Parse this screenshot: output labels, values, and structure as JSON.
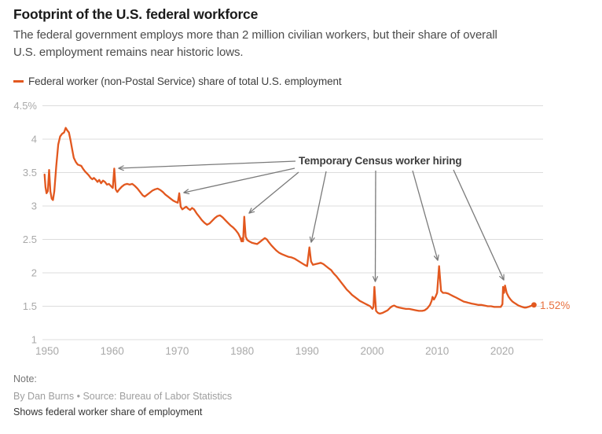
{
  "header": {
    "title": "Footprint of the U.S. federal workforce",
    "subtitle_lines": [
      "The federal government employs more than 2 million civilian workers, but their share of overall",
      "U.S. employment remains near historic lows."
    ]
  },
  "legend": {
    "label": "Federal worker (non-Postal Service) share of total U.S. employment",
    "swatch_color": "#E2581F"
  },
  "footer": {
    "note_label": "Note:",
    "byline": "By Dan Burns • Source: Bureau of Labor Statistics",
    "caption": "Shows federal worker share of employment"
  },
  "chart_data": {
    "type": "line",
    "title": "Federal worker (non-Postal Service) share of total U.S. employment",
    "unit": "percent of total U.S. employment",
    "grid": true,
    "legend_position": "top-left",
    "colors": {
      "line": "#E2581F",
      "grid": "#DCDCDC",
      "axis_label": "#A9A9A9",
      "arrow": "#7A7A7A",
      "end_label": "#E8703E",
      "annotation_text": "#3C3C3C"
    },
    "x_axis": {
      "range": [
        1949.1,
        2026.3
      ],
      "ticks": [
        {
          "v": 1950,
          "label": "1950"
        },
        {
          "v": 1960,
          "label": "1960"
        },
        {
          "v": 1970,
          "label": "1970"
        },
        {
          "v": 1980,
          "label": "1980"
        },
        {
          "v": 1990,
          "label": "1990"
        },
        {
          "v": 2000,
          "label": "2000"
        },
        {
          "v": 2010,
          "label": "2010"
        },
        {
          "v": 2020,
          "label": "2020"
        }
      ]
    },
    "y_axis": {
      "range": [
        1,
        4.5
      ],
      "ticks": [
        {
          "v": 4.5,
          "label": "4.5%"
        },
        {
          "v": 4.0,
          "label": "4"
        },
        {
          "v": 3.5,
          "label": "3.5"
        },
        {
          "v": 3.0,
          "label": "3"
        },
        {
          "v": 2.5,
          "label": "2.5"
        },
        {
          "v": 2.0,
          "label": "2"
        },
        {
          "v": 1.5,
          "label": "1.5"
        },
        {
          "v": 1.0,
          "label": "1"
        }
      ]
    },
    "annotation": {
      "text": "Temporary Census worker hiring",
      "census_years": [
        1950,
        1960,
        1970,
        1980,
        1990,
        2000,
        2010,
        2020
      ],
      "census_spike_values": [
        3.54,
        3.56,
        3.19,
        2.84,
        2.38,
        1.79,
        2.1,
        1.81
      ],
      "arrows": [
        {
          "from": [
            376,
            205
          ],
          "to": [
            151,
            214
          ]
        },
        {
          "from": [
            375,
            214
          ],
          "to": [
            234,
            245
          ]
        },
        {
          "from": [
            380,
            219
          ],
          "to": [
            317,
            271
          ]
        },
        {
          "from": [
            415,
            218
          ],
          "to": [
            396,
            308
          ]
        },
        {
          "from": [
            478,
            217
          ],
          "to": [
            477.5,
            358
          ]
        },
        {
          "from": [
            525,
            217
          ],
          "to": [
            557,
            331
          ]
        },
        {
          "from": [
            577,
            216
          ],
          "to": [
            641,
            356
          ]
        }
      ]
    },
    "end_label": "1.52%",
    "end_point": [
      2024.9,
      1.52
    ],
    "series": [
      {
        "name": "Federal worker (non-Postal Service) share of total U.S. employment",
        "color": "#E2581F",
        "points": [
          [
            1949.6,
            3.47
          ],
          [
            1949.75,
            3.28
          ],
          [
            1949.9,
            3.19
          ],
          [
            1950.1,
            3.22
          ],
          [
            1950.3,
            3.54
          ],
          [
            1950.5,
            3.22
          ],
          [
            1950.7,
            3.11
          ],
          [
            1950.9,
            3.09
          ],
          [
            1951.1,
            3.22
          ],
          [
            1951.4,
            3.6
          ],
          [
            1951.7,
            3.92
          ],
          [
            1952.0,
            4.04
          ],
          [
            1952.3,
            4.08
          ],
          [
            1952.6,
            4.1
          ],
          [
            1952.85,
            4.17
          ],
          [
            1953.1,
            4.13
          ],
          [
            1953.35,
            4.1
          ],
          [
            1953.6,
            3.98
          ],
          [
            1953.85,
            3.85
          ],
          [
            1954.1,
            3.72
          ],
          [
            1954.4,
            3.66
          ],
          [
            1954.7,
            3.62
          ],
          [
            1955.0,
            3.61
          ],
          [
            1955.25,
            3.6
          ],
          [
            1955.5,
            3.56
          ],
          [
            1955.8,
            3.52
          ],
          [
            1956.1,
            3.49
          ],
          [
            1956.4,
            3.46
          ],
          [
            1956.7,
            3.42
          ],
          [
            1956.95,
            3.4
          ],
          [
            1957.2,
            3.42
          ],
          [
            1957.5,
            3.39
          ],
          [
            1957.75,
            3.36
          ],
          [
            1958.0,
            3.39
          ],
          [
            1958.3,
            3.34
          ],
          [
            1958.6,
            3.38
          ],
          [
            1958.9,
            3.36
          ],
          [
            1959.2,
            3.32
          ],
          [
            1959.5,
            3.33
          ],
          [
            1959.8,
            3.3
          ],
          [
            1960.1,
            3.27
          ],
          [
            1960.33,
            3.56
          ],
          [
            1960.55,
            3.25
          ],
          [
            1960.8,
            3.21
          ],
          [
            1961.1,
            3.25
          ],
          [
            1961.5,
            3.29
          ],
          [
            1961.9,
            3.32
          ],
          [
            1962.3,
            3.33
          ],
          [
            1962.7,
            3.32
          ],
          [
            1963.1,
            3.33
          ],
          [
            1963.5,
            3.3
          ],
          [
            1963.9,
            3.26
          ],
          [
            1964.3,
            3.21
          ],
          [
            1964.7,
            3.16
          ],
          [
            1965.0,
            3.14
          ],
          [
            1965.4,
            3.17
          ],
          [
            1965.8,
            3.2
          ],
          [
            1966.2,
            3.23
          ],
          [
            1966.6,
            3.25
          ],
          [
            1967.0,
            3.26
          ],
          [
            1967.4,
            3.24
          ],
          [
            1967.8,
            3.21
          ],
          [
            1968.2,
            3.17
          ],
          [
            1968.6,
            3.14
          ],
          [
            1969.0,
            3.11
          ],
          [
            1969.4,
            3.08
          ],
          [
            1969.8,
            3.06
          ],
          [
            1970.1,
            3.05
          ],
          [
            1970.33,
            3.19
          ],
          [
            1970.55,
            2.99
          ],
          [
            1970.8,
            2.95
          ],
          [
            1971.1,
            2.97
          ],
          [
            1971.4,
            2.99
          ],
          [
            1971.7,
            2.96
          ],
          [
            1972.0,
            2.94
          ],
          [
            1972.3,
            2.97
          ],
          [
            1972.6,
            2.95
          ],
          [
            1973.0,
            2.89
          ],
          [
            1973.4,
            2.84
          ],
          [
            1973.8,
            2.79
          ],
          [
            1974.2,
            2.75
          ],
          [
            1974.6,
            2.72
          ],
          [
            1975.0,
            2.74
          ],
          [
            1975.4,
            2.78
          ],
          [
            1975.8,
            2.82
          ],
          [
            1976.2,
            2.85
          ],
          [
            1976.6,
            2.86
          ],
          [
            1977.0,
            2.83
          ],
          [
            1977.4,
            2.79
          ],
          [
            1977.8,
            2.75
          ],
          [
            1978.2,
            2.71
          ],
          [
            1978.6,
            2.68
          ],
          [
            1979.0,
            2.64
          ],
          [
            1979.4,
            2.59
          ],
          [
            1979.7,
            2.53
          ],
          [
            1979.9,
            2.47
          ],
          [
            1980.05,
            2.52
          ],
          [
            1980.15,
            2.47
          ],
          [
            1980.33,
            2.84
          ],
          [
            1980.55,
            2.54
          ],
          [
            1980.8,
            2.49
          ],
          [
            1981.1,
            2.47
          ],
          [
            1981.5,
            2.45
          ],
          [
            1981.9,
            2.44
          ],
          [
            1982.3,
            2.43
          ],
          [
            1982.7,
            2.46
          ],
          [
            1983.1,
            2.49
          ],
          [
            1983.5,
            2.52
          ],
          [
            1983.8,
            2.5
          ],
          [
            1984.1,
            2.46
          ],
          [
            1984.5,
            2.41
          ],
          [
            1984.9,
            2.37
          ],
          [
            1985.3,
            2.33
          ],
          [
            1985.7,
            2.3
          ],
          [
            1986.1,
            2.28
          ],
          [
            1986.6,
            2.26
          ],
          [
            1987.1,
            2.24
          ],
          [
            1987.6,
            2.23
          ],
          [
            1988.1,
            2.21
          ],
          [
            1988.6,
            2.18
          ],
          [
            1989.1,
            2.15
          ],
          [
            1989.6,
            2.12
          ],
          [
            1990.0,
            2.1
          ],
          [
            1990.35,
            2.38
          ],
          [
            1990.6,
            2.17
          ],
          [
            1990.9,
            2.12
          ],
          [
            1991.3,
            2.13
          ],
          [
            1991.7,
            2.14
          ],
          [
            1992.1,
            2.15
          ],
          [
            1992.5,
            2.13
          ],
          [
            1992.9,
            2.1
          ],
          [
            1993.3,
            2.07
          ],
          [
            1993.7,
            2.04
          ],
          [
            1994.1,
            1.99
          ],
          [
            1994.5,
            1.95
          ],
          [
            1994.9,
            1.9
          ],
          [
            1995.3,
            1.85
          ],
          [
            1995.7,
            1.8
          ],
          [
            1996.1,
            1.75
          ],
          [
            1996.5,
            1.71
          ],
          [
            1996.9,
            1.67
          ],
          [
            1997.3,
            1.64
          ],
          [
            1997.7,
            1.61
          ],
          [
            1998.1,
            1.58
          ],
          [
            1998.5,
            1.56
          ],
          [
            1998.9,
            1.54
          ],
          [
            1999.3,
            1.52
          ],
          [
            1999.7,
            1.5
          ],
          [
            2000.05,
            1.46
          ],
          [
            2000.2,
            1.49
          ],
          [
            2000.35,
            1.79
          ],
          [
            2000.6,
            1.43
          ],
          [
            2000.9,
            1.4
          ],
          [
            2001.2,
            1.39
          ],
          [
            2001.6,
            1.4
          ],
          [
            2002.0,
            1.42
          ],
          [
            2002.4,
            1.44
          ],
          [
            2002.8,
            1.48
          ],
          [
            2003.1,
            1.5
          ],
          [
            2003.4,
            1.51
          ],
          [
            2003.8,
            1.49
          ],
          [
            2004.2,
            1.48
          ],
          [
            2004.7,
            1.47
          ],
          [
            2005.2,
            1.46
          ],
          [
            2005.7,
            1.46
          ],
          [
            2006.2,
            1.45
          ],
          [
            2006.7,
            1.44
          ],
          [
            2007.2,
            1.43
          ],
          [
            2007.7,
            1.43
          ],
          [
            2008.1,
            1.44
          ],
          [
            2008.5,
            1.47
          ],
          [
            2008.9,
            1.52
          ],
          [
            2009.15,
            1.58
          ],
          [
            2009.3,
            1.64
          ],
          [
            2009.5,
            1.6
          ],
          [
            2009.75,
            1.64
          ],
          [
            2010.0,
            1.7
          ],
          [
            2010.3,
            2.1
          ],
          [
            2010.6,
            1.73
          ],
          [
            2010.9,
            1.7
          ],
          [
            2011.3,
            1.7
          ],
          [
            2011.7,
            1.69
          ],
          [
            2012.1,
            1.67
          ],
          [
            2012.5,
            1.65
          ],
          [
            2012.9,
            1.63
          ],
          [
            2013.3,
            1.61
          ],
          [
            2013.7,
            1.59
          ],
          [
            2014.1,
            1.57
          ],
          [
            2014.5,
            1.56
          ],
          [
            2014.9,
            1.55
          ],
          [
            2015.3,
            1.54
          ],
          [
            2015.8,
            1.53
          ],
          [
            2016.3,
            1.52
          ],
          [
            2016.8,
            1.52
          ],
          [
            2017.3,
            1.51
          ],
          [
            2017.8,
            1.5
          ],
          [
            2018.3,
            1.5
          ],
          [
            2018.8,
            1.49
          ],
          [
            2019.3,
            1.49
          ],
          [
            2019.8,
            1.49
          ],
          [
            2020.05,
            1.53
          ],
          [
            2020.15,
            1.79
          ],
          [
            2020.3,
            1.7
          ],
          [
            2020.45,
            1.81
          ],
          [
            2020.7,
            1.7
          ],
          [
            2021.0,
            1.64
          ],
          [
            2021.3,
            1.6
          ],
          [
            2021.6,
            1.57
          ],
          [
            2021.9,
            1.55
          ],
          [
            2022.2,
            1.53
          ],
          [
            2022.5,
            1.51
          ],
          [
            2022.8,
            1.5
          ],
          [
            2023.1,
            1.49
          ],
          [
            2023.4,
            1.48
          ],
          [
            2023.7,
            1.48
          ],
          [
            2024.0,
            1.49
          ],
          [
            2024.3,
            1.5
          ],
          [
            2024.6,
            1.51
          ],
          [
            2024.9,
            1.52
          ]
        ]
      }
    ]
  }
}
